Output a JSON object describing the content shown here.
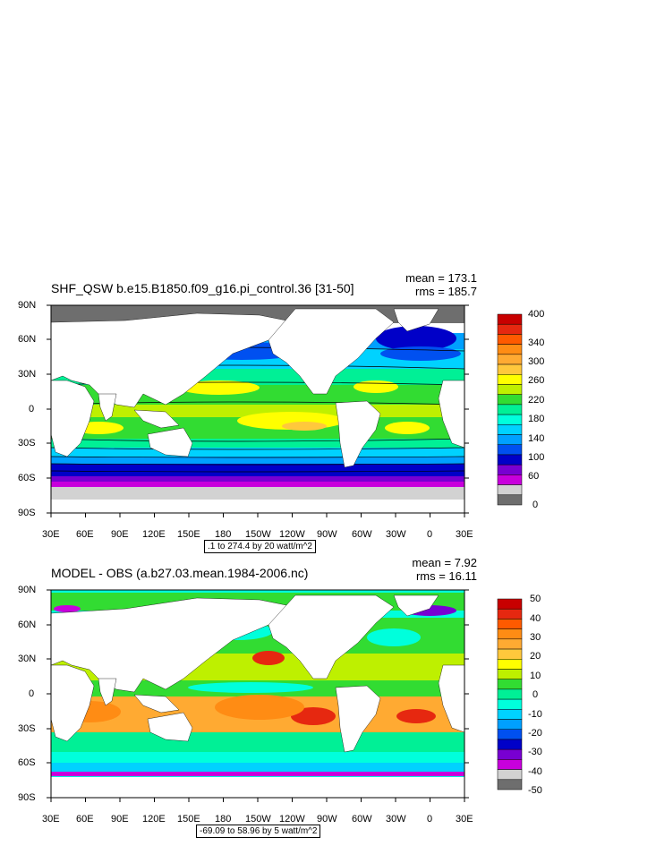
{
  "panels": [
    {
      "title": "SHF_QSW b.e15.B1850.f09_g16.pi_control.36 [31-50]",
      "mean": "mean = 173.1",
      "rms": "rms = 185.7",
      "range": ".1 to 274.4 by 20 watt/m^2",
      "lat_ticks": [
        "90N",
        "60N",
        "30N",
        "0",
        "30S",
        "60S",
        "90S"
      ],
      "lon_ticks": [
        "30E",
        "60E",
        "90E",
        "120E",
        "150E",
        "180",
        "150W",
        "120W",
        "90W",
        "60W",
        "30W",
        "0",
        "30E"
      ],
      "colorbar_labels": [
        "400",
        "340",
        "300",
        "260",
        "220",
        "180",
        "140",
        "100",
        "60",
        "0"
      ],
      "colorbar_colors": [
        "#c80000",
        "#e62810",
        "#ff5a00",
        "#ff8c14",
        "#ffaa32",
        "#ffc83c",
        "#ffff00",
        "#bef000",
        "#32dc32",
        "#00f096",
        "#00ffdc",
        "#00d2ff",
        "#00a0ff",
        "#0050f0",
        "#0000c8",
        "#7800d2",
        "#c800dc",
        "#d2d2d2",
        "#6e6e6e"
      ]
    },
    {
      "title": "MODEL - OBS (a.b27.03.mean.1984-2006.nc)",
      "mean": "mean = 7.92",
      "rms": "rms = 16.11",
      "range": "-69.09 to 58.96 by 5 watt/m^2",
      "lat_ticks": [
        "90N",
        "60N",
        "30N",
        "0",
        "30S",
        "60S",
        "90S"
      ],
      "lon_ticks": [
        "30E",
        "60E",
        "90E",
        "120E",
        "150E",
        "180",
        "150W",
        "120W",
        "90W",
        "60W",
        "30W",
        "0",
        "30E"
      ],
      "colorbar_labels": [
        "50",
        "40",
        "30",
        "20",
        "10",
        "0",
        "-10",
        "-20",
        "-30",
        "-40",
        "-50"
      ],
      "colorbar_colors": [
        "#c80000",
        "#e62810",
        "#ff5a00",
        "#ff8c14",
        "#ffaa32",
        "#ffc83c",
        "#ffff00",
        "#bef000",
        "#32dc32",
        "#00f096",
        "#00ffdc",
        "#00d2ff",
        "#00a0ff",
        "#0050f0",
        "#0000c8",
        "#7800d2",
        "#c800dc",
        "#d2d2d2",
        "#6e6e6e"
      ]
    }
  ],
  "chart_data": [
    {
      "type": "heatmap",
      "title": "SHF_QSW b.e15.B1850.f09_g16.pi_control.36 [31-50]",
      "x_ticks": [
        "30E",
        "60E",
        "90E",
        "120E",
        "150E",
        "180",
        "150W",
        "120W",
        "90W",
        "60W",
        "30W",
        "0",
        "30E"
      ],
      "y_ticks": [
        "90N",
        "60N",
        "30N",
        "0",
        "30S",
        "60S",
        "90S"
      ],
      "xlim": [
        30,
        390
      ],
      "ylim": [
        -90,
        90
      ],
      "color_levels": [
        0,
        60,
        100,
        140,
        180,
        220,
        260,
        300,
        340,
        400
      ],
      "stats": {
        "mean": 173.1,
        "rms": 185.7
      },
      "contour_range": {
        "min": 0.1,
        "max": 274.4,
        "interval": 20,
        "units": "watt/m^2"
      }
    },
    {
      "type": "heatmap",
      "title": "MODEL - OBS (a.b27.03.mean.1984-2006.nc)",
      "x_ticks": [
        "30E",
        "60E",
        "90E",
        "120E",
        "150E",
        "180",
        "150W",
        "120W",
        "90W",
        "60W",
        "30W",
        "0",
        "30E"
      ],
      "y_ticks": [
        "90N",
        "60N",
        "30N",
        "0",
        "30S",
        "60S",
        "90S"
      ],
      "xlim": [
        30,
        390
      ],
      "ylim": [
        -90,
        90
      ],
      "color_levels": [
        -50,
        -40,
        -30,
        -20,
        -10,
        0,
        10,
        20,
        30,
        40,
        50
      ],
      "stats": {
        "mean": 7.92,
        "rms": 16.11
      },
      "contour_range": {
        "min": -69.09,
        "max": 58.96,
        "interval": 5,
        "units": "watt/m^2"
      }
    }
  ]
}
